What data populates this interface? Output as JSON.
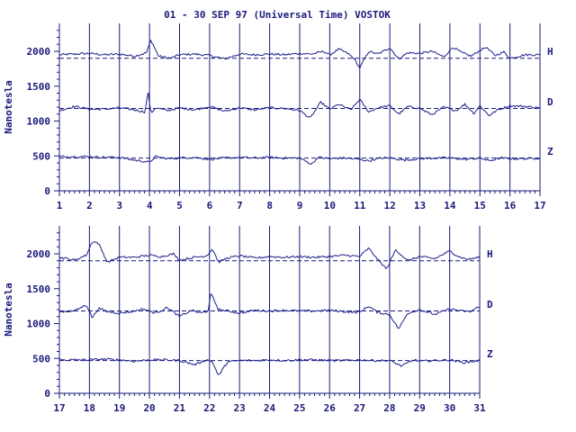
{
  "title": "01 - 30 SEP 97 (Universal Time) VOSTOK",
  "ylabel": "Nanotesla",
  "colors": {
    "axis": "#1a1a7a",
    "trace": "#1f1f8c",
    "text": "#1a1a7a"
  },
  "chart_data": [
    {
      "type": "line",
      "x_ticks": [
        "1",
        "2",
        "3",
        "4",
        "5",
        "6",
        "7",
        "8",
        "9",
        "10",
        "11",
        "12",
        "13",
        "14",
        "15",
        "16",
        "17"
      ],
      "xlim": [
        1,
        17
      ],
      "y_ticks": [
        "0",
        "500",
        "1000",
        "1500",
        "2000"
      ],
      "ylim": [
        0,
        2400
      ],
      "grid": "vertical lines at each day",
      "series": [
        {
          "name": "H",
          "baseline": 1900,
          "x": [
            1,
            1.5,
            2,
            2.5,
            3,
            3.5,
            3.9,
            4.05,
            4.3,
            4.7,
            5,
            5.5,
            6,
            6.5,
            7,
            7.5,
            8,
            8.5,
            9,
            9.4,
            9.8,
            10,
            10.3,
            10.6,
            10.8,
            11,
            11.3,
            11.6,
            12,
            12.3,
            12.6,
            13,
            13.4,
            13.8,
            14.1,
            14.4,
            14.7,
            15,
            15.2,
            15.5,
            15.8,
            16,
            16.5,
            17
          ],
          "y": [
            1950,
            1960,
            1970,
            1950,
            1960,
            1930,
            1980,
            2160,
            1930,
            1900,
            1950,
            1960,
            1940,
            1890,
            1960,
            1950,
            1960,
            1950,
            1970,
            1960,
            2000,
            1950,
            2030,
            1970,
            1900,
            1760,
            2000,
            1960,
            2050,
            1890,
            1980,
            1970,
            2000,
            1920,
            2060,
            1980,
            1930,
            2010,
            2060,
            1940,
            1990,
            1900,
            1950,
            1950
          ]
        },
        {
          "name": "D",
          "baseline": 1180,
          "x": [
            1,
            1.5,
            2,
            2.5,
            3,
            3.5,
            3.85,
            3.95,
            4.05,
            4.2,
            4.6,
            5,
            5.5,
            6,
            6.5,
            7,
            7.5,
            8,
            8.5,
            9,
            9.35,
            9.7,
            10,
            10.3,
            10.7,
            11,
            11.3,
            11.6,
            12,
            12.3,
            12.6,
            13,
            13.4,
            13.8,
            14.2,
            14.5,
            14.8,
            15,
            15.3,
            15.6,
            16,
            16.5,
            17
          ],
          "y": [
            1150,
            1210,
            1170,
            1170,
            1190,
            1160,
            1130,
            1420,
            1110,
            1190,
            1150,
            1190,
            1160,
            1210,
            1140,
            1190,
            1160,
            1190,
            1180,
            1150,
            1040,
            1270,
            1170,
            1240,
            1160,
            1310,
            1130,
            1190,
            1220,
            1100,
            1210,
            1180,
            1090,
            1200,
            1150,
            1240,
            1110,
            1220,
            1080,
            1160,
            1220,
            1210,
            1190
          ]
        },
        {
          "name": "Z",
          "baseline": 470,
          "x": [
            1,
            1.5,
            2,
            2.5,
            3,
            3.5,
            4,
            4.2,
            4.6,
            5,
            5.5,
            6,
            6.5,
            7,
            7.5,
            8,
            8.5,
            9,
            9.4,
            9.6,
            10,
            10.5,
            11,
            11.3,
            11.7,
            12,
            12.5,
            13,
            13.5,
            14,
            14.5,
            15,
            15.3,
            15.7,
            16,
            16.5,
            17
          ],
          "y": [
            490,
            490,
            490,
            480,
            480,
            440,
            410,
            490,
            460,
            470,
            480,
            450,
            470,
            480,
            470,
            480,
            470,
            470,
            380,
            480,
            460,
            470,
            450,
            430,
            470,
            470,
            440,
            460,
            470,
            470,
            450,
            470,
            430,
            470,
            460,
            460,
            470
          ]
        }
      ]
    },
    {
      "type": "line",
      "x_ticks": [
        "17",
        "18",
        "19",
        "20",
        "21",
        "22",
        "23",
        "24",
        "25",
        "26",
        "27",
        "28",
        "29",
        "30",
        "31"
      ],
      "xlim": [
        17,
        31
      ],
      "y_ticks": [
        "0",
        "500",
        "1000",
        "1500",
        "2000"
      ],
      "ylim": [
        0,
        2400
      ],
      "grid": "vertical lines at each day",
      "series": [
        {
          "name": "H",
          "baseline": 1900,
          "x": [
            17,
            17.5,
            17.9,
            18.1,
            18.3,
            18.6,
            19,
            19.5,
            20,
            20.4,
            20.8,
            21,
            21.5,
            21.9,
            22.1,
            22.3,
            22.6,
            23,
            23.5,
            24,
            24.5,
            25,
            25.5,
            26,
            26.5,
            27,
            27.3,
            27.6,
            27.9,
            28.2,
            28.6,
            29,
            29.5,
            30,
            30.3,
            30.6,
            31
          ],
          "y": [
            1950,
            1910,
            1980,
            2180,
            2150,
            1880,
            1950,
            1950,
            1980,
            1960,
            2000,
            1910,
            1950,
            1970,
            2070,
            1880,
            1940,
            1970,
            1940,
            1960,
            1950,
            1960,
            1950,
            1960,
            1980,
            1960,
            2080,
            1920,
            1780,
            2060,
            1900,
            1960,
            1930,
            2040,
            1960,
            1920,
            1950
          ]
        },
        {
          "name": "D",
          "baseline": 1180,
          "x": [
            17,
            17.5,
            17.9,
            18.1,
            18.3,
            18.6,
            19,
            19.4,
            19.8,
            20.2,
            20.6,
            21,
            21.4,
            21.7,
            21.95,
            22.05,
            22.3,
            22.6,
            23,
            23.5,
            24,
            24.5,
            25,
            25.5,
            26,
            26.5,
            27,
            27.3,
            27.6,
            28,
            28.3,
            28.6,
            29,
            29.5,
            30,
            30.4,
            30.7,
            31
          ],
          "y": [
            1170,
            1180,
            1270,
            1080,
            1220,
            1170,
            1150,
            1170,
            1210,
            1150,
            1230,
            1100,
            1190,
            1150,
            1180,
            1430,
            1200,
            1180,
            1150,
            1190,
            1180,
            1190,
            1180,
            1180,
            1190,
            1170,
            1160,
            1250,
            1160,
            1130,
            920,
            1150,
            1200,
            1130,
            1210,
            1180,
            1170,
            1250
          ]
        },
        {
          "name": "Z",
          "baseline": 470,
          "x": [
            17,
            17.5,
            18,
            18.5,
            19,
            19.5,
            20,
            20.5,
            21,
            21.5,
            21.9,
            22.1,
            22.3,
            22.6,
            23,
            23.5,
            24,
            24.5,
            25,
            25.5,
            26,
            26.5,
            27,
            27.5,
            28,
            28.4,
            28.8,
            29,
            29.5,
            30,
            30.5,
            31
          ],
          "y": [
            480,
            480,
            480,
            490,
            480,
            460,
            480,
            480,
            470,
            410,
            480,
            450,
            250,
            450,
            470,
            470,
            480,
            470,
            480,
            480,
            470,
            470,
            480,
            470,
            470,
            390,
            480,
            460,
            470,
            480,
            440,
            470
          ]
        }
      ]
    }
  ]
}
